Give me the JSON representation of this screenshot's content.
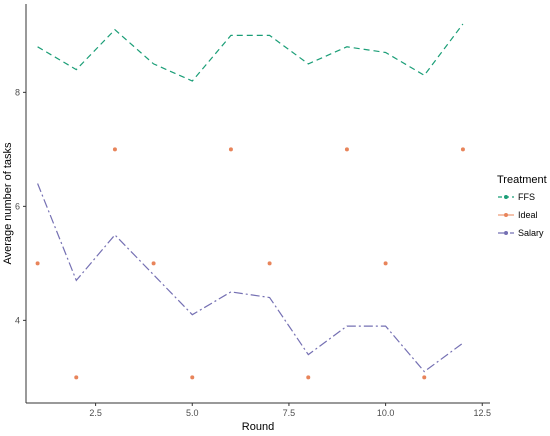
{
  "chart_data": {
    "type": "line",
    "title": "",
    "xlabel": "Round",
    "ylabel": "Average number of tasks",
    "xlim": [
      0.7,
      12.7
    ],
    "ylim": [
      2.55,
      9.55
    ],
    "x_ticks": [
      2.5,
      5.0,
      7.5,
      10.0,
      12.5
    ],
    "x_tick_labels": [
      "2.5",
      "5.0",
      "7.5",
      "10.0",
      "12.5"
    ],
    "y_ticks": [
      4,
      6,
      8
    ],
    "y_tick_labels": [
      "4",
      "6",
      "8"
    ],
    "grid": false,
    "legend": {
      "title": "Treatment",
      "position": "right"
    },
    "series": [
      {
        "name": "FFS",
        "color": "#1b9e77",
        "style": "dashed",
        "x": [
          1,
          2,
          3,
          4,
          5,
          6,
          7,
          8,
          9,
          10,
          11,
          12
        ],
        "values": [
          8.8,
          8.4,
          9.1,
          8.5,
          8.2,
          9.0,
          9.0,
          8.5,
          8.8,
          8.7,
          8.3,
          9.2
        ]
      },
      {
        "name": "Ideal",
        "color": "#e8845a",
        "style": "points",
        "x": [
          1,
          2,
          3,
          4,
          5,
          6,
          7,
          8,
          9,
          10,
          11,
          12
        ],
        "values": [
          5,
          3,
          7,
          5,
          3,
          7,
          5,
          3,
          7,
          5,
          3,
          7
        ]
      },
      {
        "name": "Salary",
        "color": "#7570b3",
        "style": "dashdot",
        "x": [
          1,
          2,
          3,
          4,
          5,
          6,
          7,
          8,
          9,
          10,
          11,
          12
        ],
        "values": [
          6.4,
          4.7,
          5.5,
          4.8,
          4.1,
          4.5,
          4.4,
          3.4,
          3.9,
          3.9,
          3.1,
          3.6
        ]
      }
    ]
  }
}
